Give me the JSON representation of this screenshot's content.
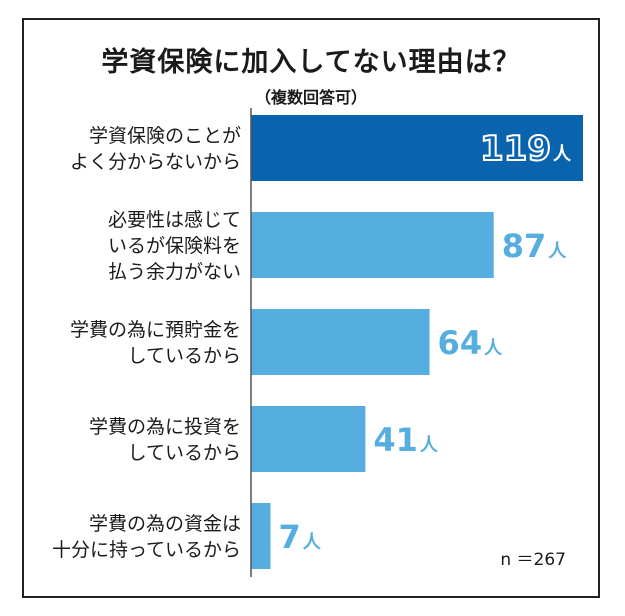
{
  "chart_title": "学資保険に加入してない理由は？",
  "chart_subtitle": "（複数回答可）",
  "sample_size": "n ＝267",
  "colors": {
    "highlight": "#0a64ad",
    "bar": "#55ade0",
    "value_text": "#55ade0",
    "axis": "#555555"
  },
  "chart_data": {
    "type": "bar",
    "orientation": "horizontal",
    "title": "学資保険に加入してない理由は？",
    "subtitle": "（複数回答可）",
    "unit": "人",
    "categories": [
      [
        "学資保険のことが",
        "よく分からないから"
      ],
      [
        "必要性は感じて",
        "いるが保険料を",
        "払う余力がない"
      ],
      [
        "学費の為に預貯金を",
        "しているから"
      ],
      [
        "学費の為に投資を",
        "しているから"
      ],
      [
        "学費の為の資金は",
        "十分に持っているから"
      ]
    ],
    "values": [
      119,
      87,
      64,
      41,
      7
    ],
    "value_labels": [
      "119",
      "87",
      "64",
      "41",
      "7"
    ],
    "xlim": [
      0,
      119
    ],
    "grid": false,
    "legend": "none"
  }
}
